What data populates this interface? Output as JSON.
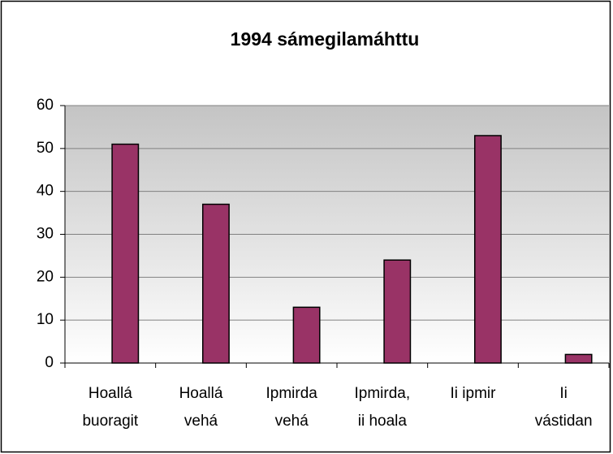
{
  "chart_data": {
    "type": "bar",
    "title": "1994 sámegilamáhttu",
    "categories": [
      [
        "Hoallá",
        "buoragit"
      ],
      [
        "Hoallá",
        "vehá"
      ],
      [
        "Ipmirda",
        "vehá"
      ],
      [
        "Ipmirda,",
        "ii hoala"
      ],
      [
        "Ii ipmir"
      ],
      [
        "Ii",
        "vástidan"
      ]
    ],
    "values": [
      51,
      37,
      13,
      24,
      53,
      2
    ],
    "color": "#993366",
    "ylim": [
      0,
      60
    ],
    "yticks": [
      0,
      10,
      20,
      30,
      40,
      50,
      60
    ],
    "grid": true
  }
}
